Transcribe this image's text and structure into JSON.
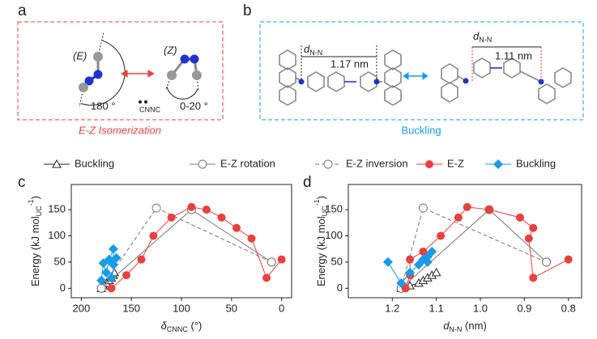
{
  "panel_labels": [
    "a",
    "b",
    "c",
    "d"
  ],
  "schematic": {
    "e_label": "(E)",
    "z_label": "(Z)",
    "angle_e": "180 °",
    "cnnc": "CNNC",
    "angle_z": "0-20 °",
    "isomerization": "E-Z Isomerization",
    "d_symbol": "d",
    "d_sub": "N-N",
    "dist_1": "1.17 nm",
    "dist_2": "1.11 nm",
    "buckling": "Buckling"
  },
  "chart_data": [
    {
      "type": "scatter",
      "x_label": {
        "text": "δ",
        "sub": "CNNC",
        "after": " (°)"
      },
      "y_label": {
        "text": "Energy (kJ mol",
        "sub": "UC",
        "sup": "-1",
        "after": ")"
      },
      "xlim": [
        210,
        -10
      ],
      "xticks": [
        200,
        150,
        100,
        50,
        0
      ],
      "ylim": [
        -18,
        198
      ],
      "yticks": [
        0,
        50,
        100,
        150
      ],
      "series": [
        {
          "name": "Buckling",
          "color": "#222222",
          "marker": "triangle-open",
          "dash": false,
          "x": [
            180,
            178,
            175,
            172,
            170,
            168,
            167
          ],
          "values": [
            0,
            5,
            10,
            15,
            20,
            25,
            30
          ]
        },
        {
          "name": "E-Z rotation",
          "color": "#777777",
          "marker": "circle-open",
          "dash": false,
          "x": [
            180,
            90,
            10
          ],
          "values": [
            0,
            150,
            50
          ]
        },
        {
          "name": "E-Z inversion",
          "color": "#777777",
          "marker": "circle-open",
          "dash": true,
          "x": [
            180,
            125,
            10
          ],
          "values": [
            0,
            153,
            50
          ]
        },
        {
          "name": "E-Z",
          "color": "#e8413f",
          "marker": "circle",
          "dash": false,
          "x": [
            170,
            155,
            140,
            128,
            110,
            90,
            75,
            60,
            45,
            30,
            15,
            0
          ],
          "values": [
            0,
            25,
            55,
            100,
            135,
            155,
            150,
            135,
            115,
            95,
            20,
            55
          ]
        },
        {
          "name": "Buckling",
          "color": "#1a9be6",
          "marker": "diamond",
          "dash": false,
          "x": [
            180,
            178,
            175,
            172,
            168,
            168,
            165,
            170
          ],
          "values": [
            15,
            48,
            30,
            55,
            75,
            45,
            58,
            20
          ]
        }
      ]
    },
    {
      "type": "scatter",
      "x_label": {
        "text": "d",
        "sub": "N-N",
        "after": " (nm)"
      },
      "y_label": {
        "text": "Energy (kJ mol",
        "sub": "UC",
        "sup": "-1",
        "after": ")"
      },
      "xlim": [
        1.3,
        0.77
      ],
      "xticks": [
        1.2,
        1.1,
        {
          "value": 1,
          "label": "1.0"
        },
        0.9,
        0.8
      ],
      "ylim": [
        -18,
        198
      ],
      "yticks": [
        0,
        50,
        100,
        150
      ],
      "series": [
        {
          "color": "#222222",
          "marker": "triangle-open",
          "dash": false,
          "x": [
            1.18,
            1.16,
            1.14,
            1.13,
            1.12,
            1.11,
            1.1
          ],
          "values": [
            0,
            5,
            10,
            15,
            20,
            25,
            30
          ]
        },
        {
          "color": "#777777",
          "marker": "circle-open",
          "dash": false,
          "x": [
            1.18,
            0.98,
            0.85
          ],
          "values": [
            0,
            150,
            50
          ]
        },
        {
          "color": "#777777",
          "marker": "circle-open",
          "dash": true,
          "x": [
            1.18,
            1.13,
            0.85
          ],
          "values": [
            0,
            153,
            50
          ]
        },
        {
          "color": "#e8413f",
          "marker": "circle",
          "dash": false,
          "x": [
            1.17,
            1.16,
            1.16,
            1.13,
            1.09,
            1.05,
            1.03,
            0.98,
            0.91,
            0.88,
            0.89,
            0.88,
            0.8
          ],
          "values": [
            0,
            25,
            55,
            70,
            100,
            135,
            155,
            150,
            135,
            115,
            95,
            20,
            55
          ]
        },
        {
          "color": "#1a9be6",
          "marker": "diamond",
          "dash": false,
          "x": [
            1.21,
            1.18,
            1.16,
            1.14,
            1.13,
            1.12,
            1.11,
            1.12
          ],
          "values": [
            50,
            10,
            30,
            45,
            55,
            60,
            70,
            50
          ]
        }
      ]
    }
  ]
}
